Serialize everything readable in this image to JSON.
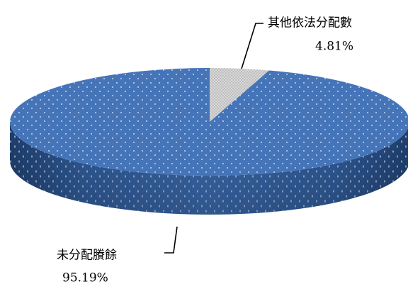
{
  "chart_data": {
    "type": "pie",
    "style": "3d",
    "title": "",
    "slices": [
      {
        "label": "其他依法分配數",
        "value": 4.81,
        "value_label": "4.81%",
        "color": "#e6e6e6",
        "pattern": "dotted"
      },
      {
        "label": "未分配賸餘",
        "value": 95.19,
        "value_label": "95.19%",
        "color": "#4472c4",
        "pattern": "dotted"
      }
    ],
    "legend": "none"
  }
}
